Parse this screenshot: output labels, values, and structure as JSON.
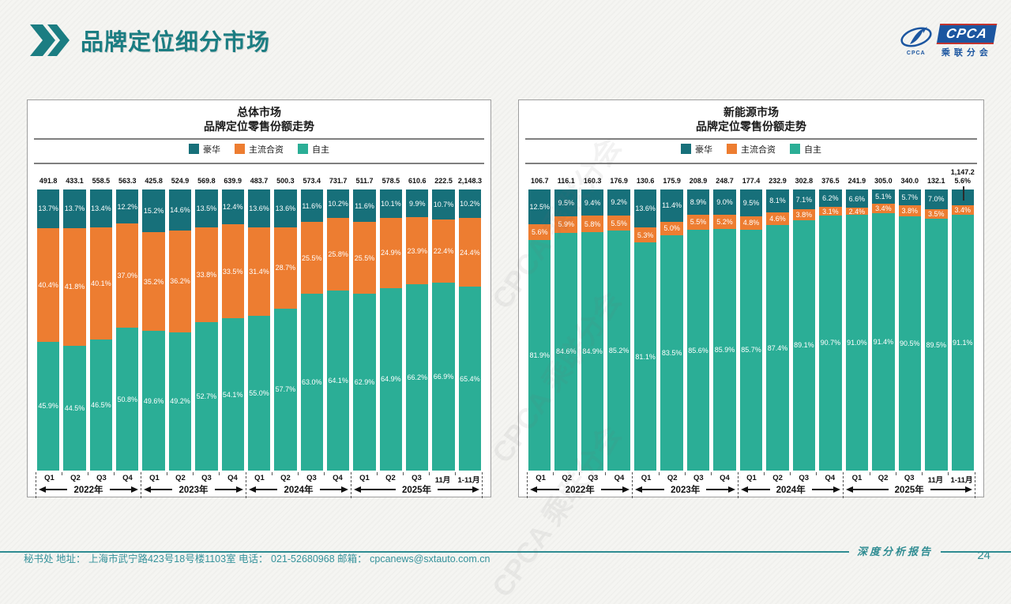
{
  "page": {
    "title": "品牌定位细分市场",
    "page_number": "24",
    "report_label": "深度分析报告",
    "footer": "秘书处   地址： 上海市武宁路423号18号楼1103室  电话： 021-52680968   邮箱： cpcanews@sxtauto.com.cn",
    "watermark": "CPCA 乘联分会",
    "logo": {
      "cpca": "CPCA",
      "sub": "乘联分会",
      "swoosh_caption": "CPCA"
    }
  },
  "colors": {
    "luxury": "#17707a",
    "joint_venture": "#ed7d31",
    "domestic": "#2bae96",
    "accent": "#1b7d82",
    "footer": "#2f8c92"
  },
  "legend": [
    "豪华",
    "主流合资",
    "自主"
  ],
  "chart_data": [
    {
      "type": "stacked-bar-100",
      "title_line1": "总体市场",
      "title_line2": "品牌定位零售份额走势",
      "unit_note": "share %, totals in 万辆 shown above bars",
      "categories": [
        "Q1",
        "Q2",
        "Q3",
        "Q4",
        "Q1",
        "Q2",
        "Q3",
        "Q4",
        "Q1",
        "Q2",
        "Q3",
        "Q4",
        "Q1",
        "Q2",
        "Q3",
        "11月",
        "1-11月"
      ],
      "year_groups": [
        {
          "label": "2022年",
          "span": 4
        },
        {
          "label": "2023年",
          "span": 4
        },
        {
          "label": "2024年",
          "span": 4
        },
        {
          "label": "2025年",
          "span": 5
        }
      ],
      "totals": [
        "491.8",
        "433.1",
        "558.5",
        "563.3",
        "425.8",
        "524.9",
        "569.8",
        "639.9",
        "483.7",
        "500.3",
        "573.4",
        "731.7",
        "511.7",
        "578.5",
        "610.6",
        "222.5",
        "2,148.3"
      ],
      "series": [
        {
          "name": "豪华",
          "values": [
            13.7,
            13.7,
            13.4,
            12.2,
            15.2,
            14.6,
            13.5,
            12.4,
            13.6,
            13.6,
            11.6,
            10.2,
            11.6,
            10.1,
            9.9,
            10.7,
            10.2
          ]
        },
        {
          "name": "主流合资",
          "values": [
            40.4,
            41.8,
            40.1,
            37.0,
            35.2,
            36.2,
            33.8,
            33.5,
            31.4,
            28.7,
            25.5,
            25.8,
            25.5,
            24.9,
            23.9,
            22.4,
            24.4
          ]
        },
        {
          "name": "自主",
          "values": [
            45.9,
            44.5,
            46.5,
            50.8,
            49.6,
            49.2,
            52.7,
            54.1,
            55.0,
            57.7,
            63.0,
            64.1,
            62.9,
            64.9,
            66.2,
            66.9,
            65.4
          ]
        }
      ],
      "legend_position": "top",
      "ylim": [
        0,
        100
      ]
    },
    {
      "type": "stacked-bar-100",
      "title_line1": "新能源市场",
      "title_line2": "品牌定位零售份额走势",
      "unit_note": "share %, totals in 万辆 shown above bars",
      "categories": [
        "Q1",
        "Q2",
        "Q3",
        "Q4",
        "Q1",
        "Q2",
        "Q3",
        "Q4",
        "Q1",
        "Q2",
        "Q3",
        "Q4",
        "Q1",
        "Q2",
        "Q3",
        "11月",
        "1-11月"
      ],
      "year_groups": [
        {
          "label": "2022年",
          "span": 4
        },
        {
          "label": "2023年",
          "span": 4
        },
        {
          "label": "2024年",
          "span": 4
        },
        {
          "label": "2025年",
          "span": 5
        }
      ],
      "totals": [
        "106.7",
        "116.1",
        "160.3",
        "176.9",
        "130.6",
        "175.9",
        "208.9",
        "248.7",
        "177.4",
        "232.9",
        "302.8",
        "376.5",
        "241.9",
        "305.0",
        "340.0",
        "132.1",
        "1,147.2"
      ],
      "series": [
        {
          "name": "豪华",
          "values": [
            12.5,
            9.5,
            9.4,
            9.2,
            13.6,
            11.4,
            8.9,
            9.0,
            9.5,
            8.1,
            7.1,
            6.2,
            6.6,
            5.1,
            5.7,
            7.0,
            5.6
          ]
        },
        {
          "name": "主流合资",
          "values": [
            5.6,
            5.9,
            5.8,
            5.5,
            5.3,
            5.0,
            5.5,
            5.2,
            4.8,
            4.6,
            3.8,
            3.1,
            2.4,
            3.4,
            3.8,
            3.5,
            3.4
          ]
        },
        {
          "name": "自主",
          "values": [
            81.9,
            84.6,
            84.9,
            85.2,
            81.1,
            83.5,
            85.6,
            85.9,
            85.7,
            87.4,
            89.1,
            90.7,
            91.0,
            91.4,
            90.5,
            89.5,
            91.1
          ]
        }
      ],
      "outside_top_label_index": 16,
      "legend_position": "top",
      "ylim": [
        0,
        100
      ]
    }
  ]
}
